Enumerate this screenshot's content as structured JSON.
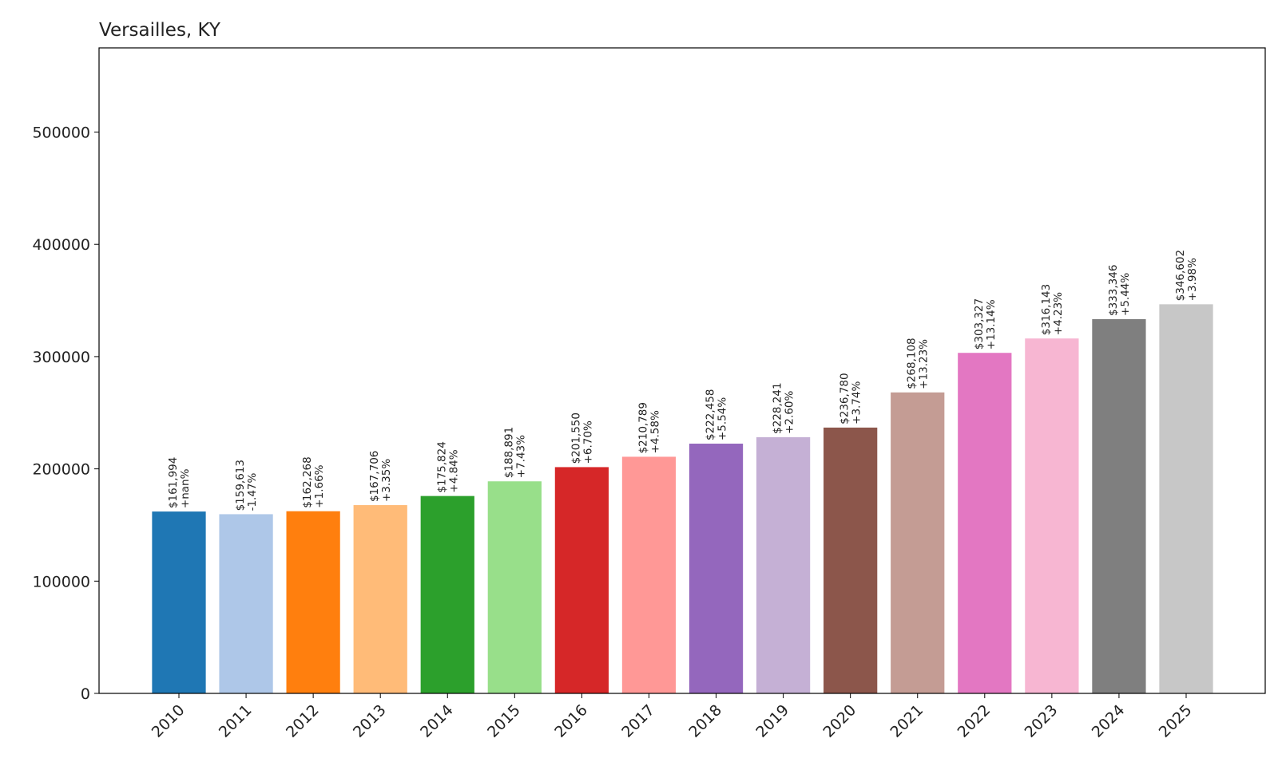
{
  "chart_data": {
    "type": "bar",
    "title": "Versailles, KY",
    "xlabel": "",
    "ylabel": "",
    "ylim": [
      0,
      575000
    ],
    "yticks": [
      0,
      100000,
      200000,
      300000,
      400000,
      500000
    ],
    "ytick_labels": [
      "0",
      "100000",
      "200000",
      "300000",
      "400000",
      "500000"
    ],
    "grid": false,
    "legend": "none",
    "categories": [
      "2010",
      "2011",
      "2012",
      "2013",
      "2014",
      "2015",
      "2016",
      "2017",
      "2018",
      "2019",
      "2020",
      "2021",
      "2022",
      "2023",
      "2024",
      "2025"
    ],
    "values": [
      161994,
      159613,
      162268,
      167706,
      175824,
      188891,
      201550,
      210789,
      222458,
      228241,
      236780,
      268108,
      303327,
      316143,
      333346,
      346602
    ],
    "value_labels": [
      "$161,994",
      "$159,613",
      "$162,268",
      "$167,706",
      "$175,824",
      "$188,891",
      "$201,550",
      "$210,789",
      "$222,458",
      "$228,241",
      "$236,780",
      "$268,108",
      "$303,327",
      "$316,143",
      "$333,346",
      "$346,602"
    ],
    "change_labels": [
      "+nan%",
      "-1.47%",
      "+1.66%",
      "+3.35%",
      "+4.84%",
      "+7.43%",
      "+6.70%",
      "+4.58%",
      "+5.54%",
      "+2.60%",
      "+3.74%",
      "+13.23%",
      "+13.14%",
      "+4.23%",
      "+5.44%",
      "+3.98%"
    ],
    "colors": [
      "#1f77b4",
      "#aec7e8",
      "#ff7f0e",
      "#ffbb78",
      "#2ca02c",
      "#98df8a",
      "#d62728",
      "#ff9896",
      "#9467bd",
      "#c5b0d5",
      "#8c564b",
      "#c49c94",
      "#e377c2",
      "#f7b6d2",
      "#7f7f7f",
      "#c7c7c7"
    ]
  }
}
